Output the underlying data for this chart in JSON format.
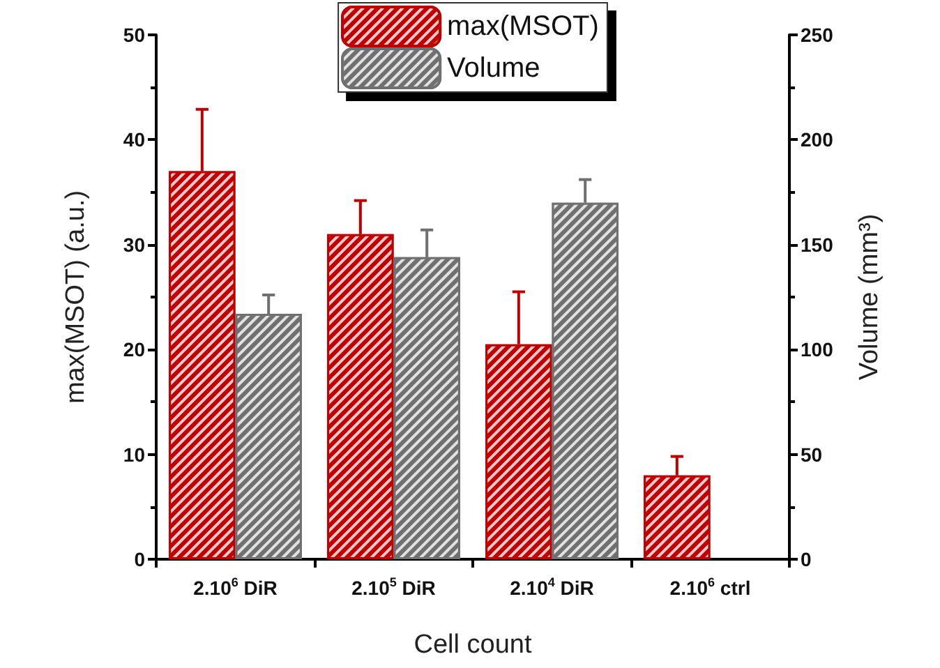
{
  "chart_data": {
    "type": "bar",
    "categories": [
      "2.10$^{6}$ DiR",
      "2.10$^{5}$ DiR",
      "2.10$^{4}$ DiR",
      "2.10$^{6}$ ctrl"
    ],
    "series": [
      {
        "name": "max(MSOT)",
        "color": "#c00000",
        "values": [
          37,
          31,
          20.5,
          8
        ],
        "errors": [
          [
            37,
            42.9
          ],
          [
            31,
            34.2
          ],
          [
            20.5,
            25.5
          ],
          [
            8,
            9.8
          ]
        ]
      },
      {
        "name": "Volume",
        "color": "#707070",
        "axis": "y2",
        "values": [
          117,
          144,
          170,
          null
        ],
        "errors": [
          [
            117,
            126
          ],
          [
            144,
            157
          ],
          [
            170,
            181
          ],
          null
        ]
      }
    ],
    "xlabel": "Cell count",
    "ylabel": "max(MSOT) (a.u.)",
    "y2label": "Volume (mm³)",
    "ylim": [
      0,
      50
    ],
    "yticks": [
      0,
      10,
      20,
      30,
      40,
      50
    ],
    "y2lim": [
      0,
      250
    ],
    "y2ticks": [
      0,
      50,
      100,
      150,
      200,
      250
    ],
    "legend": "top",
    "grid": false
  }
}
